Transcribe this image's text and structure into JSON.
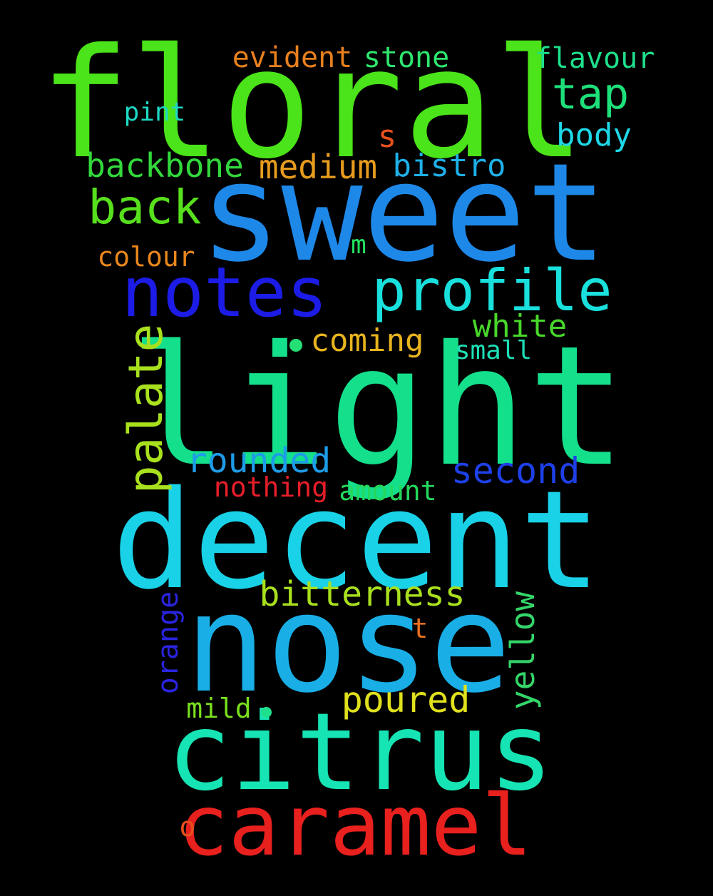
{
  "words": [
    {
      "text": "floral",
      "color": "#4be319"
    },
    {
      "text": "sweet",
      "color": "#1e88e8"
    },
    {
      "text": "light",
      "color": "#14e08c"
    },
    {
      "text": "decent",
      "color": "#19d2e8"
    },
    {
      "text": "nose",
      "color": "#19aee6"
    },
    {
      "text": "citrus",
      "color": "#16e4b4"
    },
    {
      "text": "caramel",
      "color": "#e8201e"
    },
    {
      "text": "notes",
      "color": "#1c1ce6"
    },
    {
      "text": "profile",
      "color": "#19e0dc"
    },
    {
      "text": "palate",
      "color": "#a8e01e"
    },
    {
      "text": "back",
      "color": "#57e01c"
    },
    {
      "text": "tap",
      "color": "#1ee07a"
    },
    {
      "text": "backbone",
      "color": "#32d83c"
    },
    {
      "text": "medium",
      "color": "#e89c1e"
    },
    {
      "text": "bistro",
      "color": "#1eb0e8"
    },
    {
      "text": "body",
      "color": "#1ed8e8"
    },
    {
      "text": "evident",
      "color": "#e8801e"
    },
    {
      "text": "stone",
      "color": "#2ee66e"
    },
    {
      "text": "flavour",
      "color": "#1ee08c"
    },
    {
      "text": "pint",
      "color": "#1ed8c4"
    },
    {
      "text": "s",
      "color": "#e8501e"
    },
    {
      "text": "colour",
      "color": "#e8861e"
    },
    {
      "text": "m",
      "color": "#24e060"
    },
    {
      "text": "coming",
      "color": "#e8b41e"
    },
    {
      "text": "white",
      "color": "#48d82a"
    },
    {
      "text": "small",
      "color": "#1ee0b6"
    },
    {
      "text": "rounded",
      "color": "#1e9ce8"
    },
    {
      "text": "second",
      "color": "#1e40e8"
    },
    {
      "text": "nothing",
      "color": "#e81e2a"
    },
    {
      "text": "amount",
      "color": "#24d85c"
    },
    {
      "text": "bitterness",
      "color": "#a8e01e"
    },
    {
      "text": "orange",
      "color": "#2a24e0"
    },
    {
      "text": "yellow",
      "color": "#34d66a"
    },
    {
      "text": "t",
      "color": "#e8701e"
    },
    {
      "text": "poured",
      "color": "#e0e01e"
    },
    {
      "text": "mild",
      "color": "#7ae01e"
    },
    {
      "text": "o",
      "color": "#e8501e"
    }
  ],
  "dots": [
    {
      "color": "#24e074"
    },
    {
      "color": "#1ee08c"
    }
  ]
}
